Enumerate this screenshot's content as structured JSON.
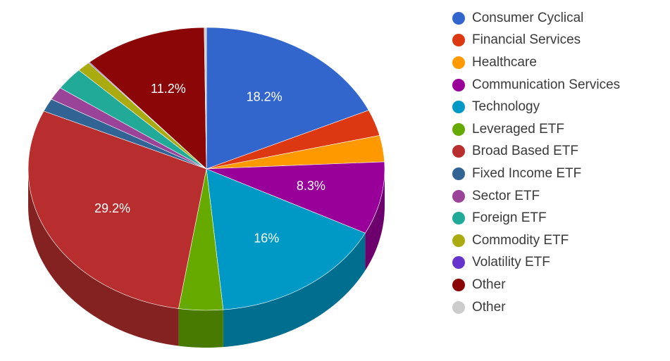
{
  "chart_data": {
    "type": "pie",
    "style": "3d",
    "legend_position": "right",
    "slices": [
      {
        "name": "Consumer Cyclical",
        "value": 18.2,
        "color": "#3366cc",
        "label": "18.2%"
      },
      {
        "name": "Financial Services",
        "value": 3.0,
        "color": "#dc3912",
        "label": ""
      },
      {
        "name": "Healthcare",
        "value": 3.0,
        "color": "#ff9900",
        "label": ""
      },
      {
        "name": "Communication Services",
        "value": 8.3,
        "color": "#990099",
        "label": "8.3%"
      },
      {
        "name": "Technology",
        "value": 16.0,
        "color": "#0099c6",
        "label": "16%"
      },
      {
        "name": "Leveraged ETF",
        "value": 4.0,
        "color": "#66aa00",
        "label": ""
      },
      {
        "name": "Broad Based ETF",
        "value": 29.2,
        "color": "#b82e2e",
        "label": "29.2%"
      },
      {
        "name": "Fixed Income ETF",
        "value": 1.5,
        "color": "#316395",
        "label": ""
      },
      {
        "name": "Sector ETF",
        "value": 1.5,
        "color": "#994499",
        "label": ""
      },
      {
        "name": "Foreign ETF",
        "value": 2.6,
        "color": "#22aa99",
        "label": ""
      },
      {
        "name": "Commodity ETF",
        "value": 1.2,
        "color": "#aaaa11",
        "label": ""
      },
      {
        "name": "Volatility ETF",
        "value": 0.1,
        "color": "#6633cc",
        "label": ""
      },
      {
        "name": "Other",
        "value": 11.2,
        "color": "#8b0707",
        "label": "11.2%"
      },
      {
        "name": "Other",
        "value": 0.2,
        "color": "#cccccc",
        "label": ""
      }
    ]
  }
}
